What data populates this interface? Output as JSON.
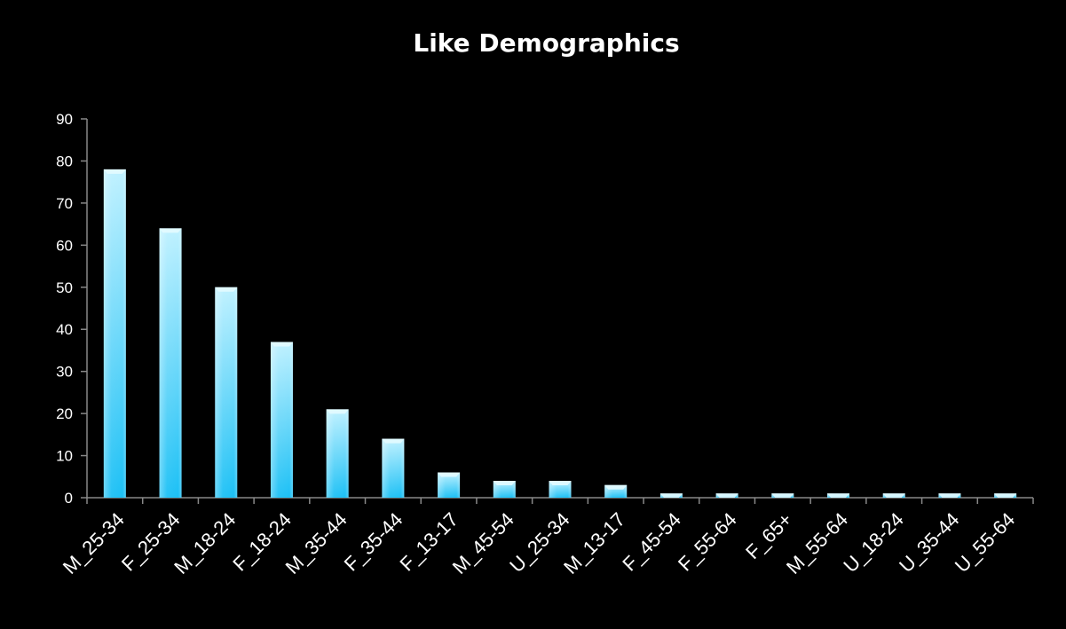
{
  "chart_data": {
    "type": "bar",
    "title": "Like Demographics",
    "xlabel": "",
    "ylabel": "",
    "categories": [
      "M_25-34",
      "F_25-34",
      "M_18-24",
      "F_18-24",
      "M_35-44",
      "F_35-44",
      "F_13-17",
      "M_45-54",
      "U_25-34",
      "M_13-17",
      "F_45-54",
      "F_55-64",
      "F_65+",
      "M_55-64",
      "U_18-24",
      "U_35-44",
      "U_55-64"
    ],
    "values": [
      78,
      64,
      50,
      37,
      21,
      14,
      6,
      4,
      4,
      3,
      1,
      1,
      1,
      1,
      1,
      1,
      1
    ],
    "ylim": [
      0,
      90
    ],
    "yticks": [
      0,
      10,
      20,
      30,
      40,
      50,
      60,
      70,
      80,
      90
    ],
    "grid": false,
    "legend": "none",
    "colors": {
      "background": "#000000",
      "bar_top": "#bff1ff",
      "bar_bottom": "#1cc0f5",
      "axis": "#888888",
      "text": "#ffffff"
    }
  }
}
